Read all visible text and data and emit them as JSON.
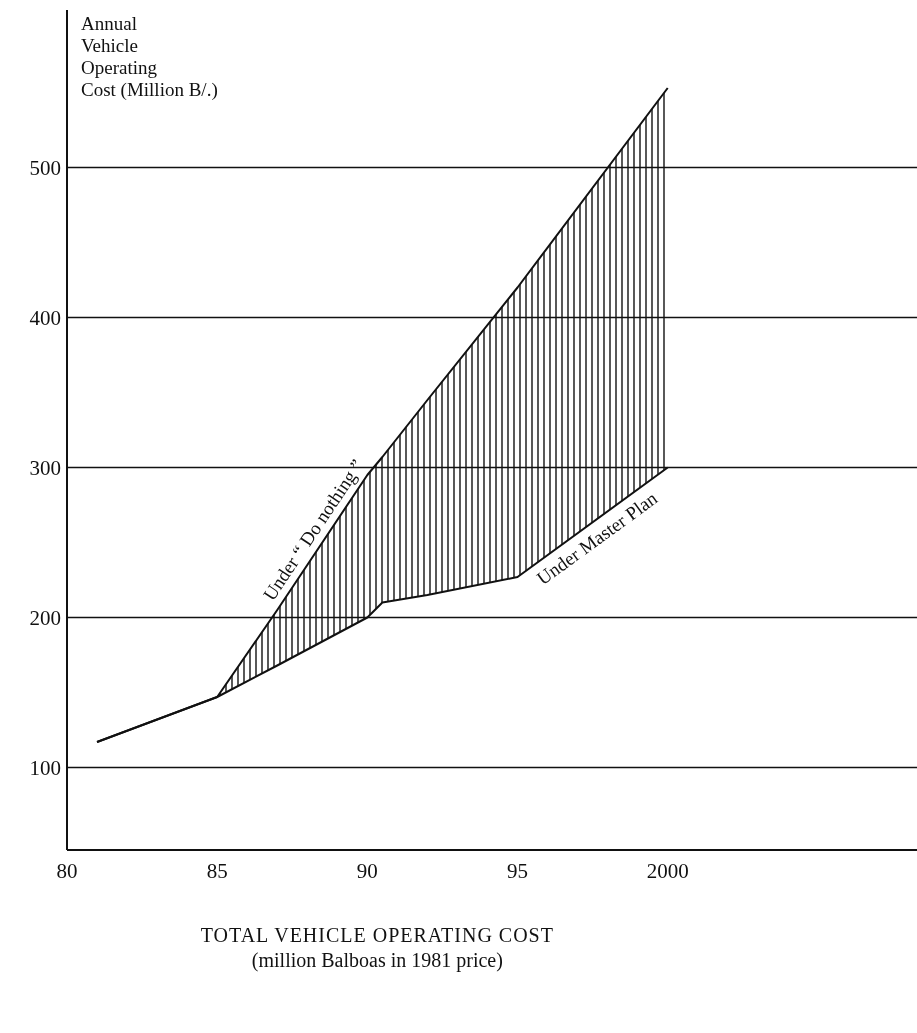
{
  "chart_data": {
    "type": "line",
    "xlabel": "TOTAL VEHICLE OPERATING COST",
    "ylabel": "Annual Vehicle Operating Cost (Million B/.)",
    "annotations": [
      "(million Balboas in 1981 price)"
    ],
    "x": [
      1981,
      1985,
      1987,
      1990,
      1990.5,
      1992,
      1995,
      2000
    ],
    "series": [
      {
        "name": "Under “ Do nothing ”",
        "color": "#111111",
        "values": [
          117,
          147,
          205,
          295,
          307,
          345,
          420,
          553
        ],
        "lower": [
          117,
          147,
          168,
          200,
          210,
          215,
          227,
          300
        ],
        "upper": [
          117,
          147,
          205,
          295,
          307,
          345,
          420,
          553
        ]
      },
      {
        "name": "Under Master Plan",
        "color": "#111111",
        "values": [
          117,
          147,
          168,
          200,
          210,
          215,
          227,
          300
        ]
      }
    ],
    "xlim": [
      1980,
      2008.3
    ],
    "xticks": [
      {
        "value": 1980,
        "label": "80"
      },
      {
        "value": 1985,
        "label": "85"
      },
      {
        "value": 1990,
        "label": "90"
      },
      {
        "value": 1995,
        "label": "95"
      },
      2000
    ],
    "ylim": [
      45,
      605
    ],
    "yticks": [
      100,
      200,
      300,
      400,
      500
    ],
    "grid": "y",
    "line_style": "solid",
    "marker": "none"
  }
}
